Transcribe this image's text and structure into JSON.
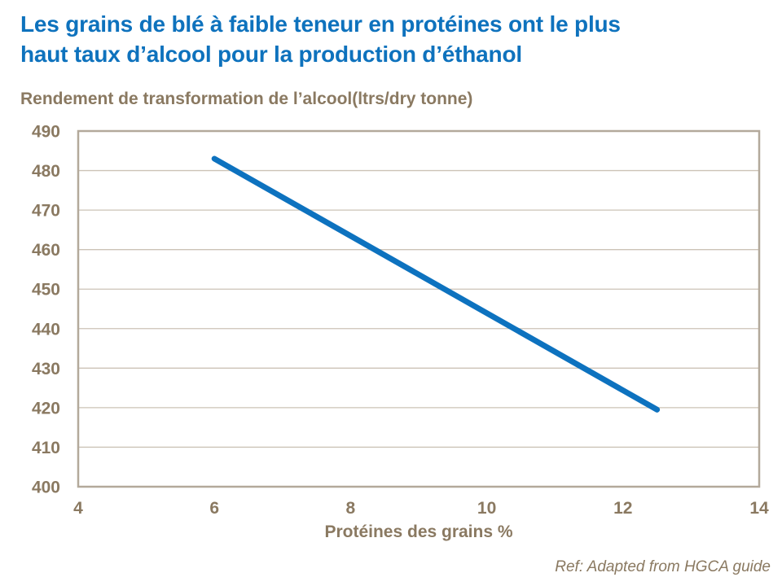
{
  "header": {
    "title_line1": "Les grains de blé à faible teneur en protéines ont le plus",
    "title_line2": "haut taux d’alcool pour la production d’éthanol"
  },
  "chart_data": {
    "type": "line",
    "title": "Les grains de blé à faible teneur en protéines ont le plus haut taux d’alcool pour la production d’éthanol",
    "ylabel": "Rendement de transformation de l’alcool(ltrs/dry tonne)",
    "xlabel": "Protéines des grains %",
    "xlim": [
      4,
      14
    ],
    "ylim": [
      400,
      490
    ],
    "x_ticks": [
      4,
      6,
      8,
      10,
      12,
      14
    ],
    "y_ticks": [
      400,
      410,
      420,
      430,
      440,
      450,
      460,
      470,
      480,
      490
    ],
    "grid": "horizontal",
    "legend": "none",
    "series": [
      {
        "name": "Rendement de transformation de l’alcool",
        "color": "#0d72bf",
        "points": [
          [
            6,
            483
          ],
          [
            12.5,
            419.5
          ]
        ]
      }
    ]
  },
  "footer": {
    "ref": "Ref: Adapted from HGCA guide"
  },
  "colors": {
    "title_blue": "#0e72bd",
    "line_blue": "#0d72bf",
    "text_brown": "#8a7961",
    "gridline": "#ccc3b6",
    "plot_border": "#b3a99b",
    "background": "#ffffff"
  }
}
